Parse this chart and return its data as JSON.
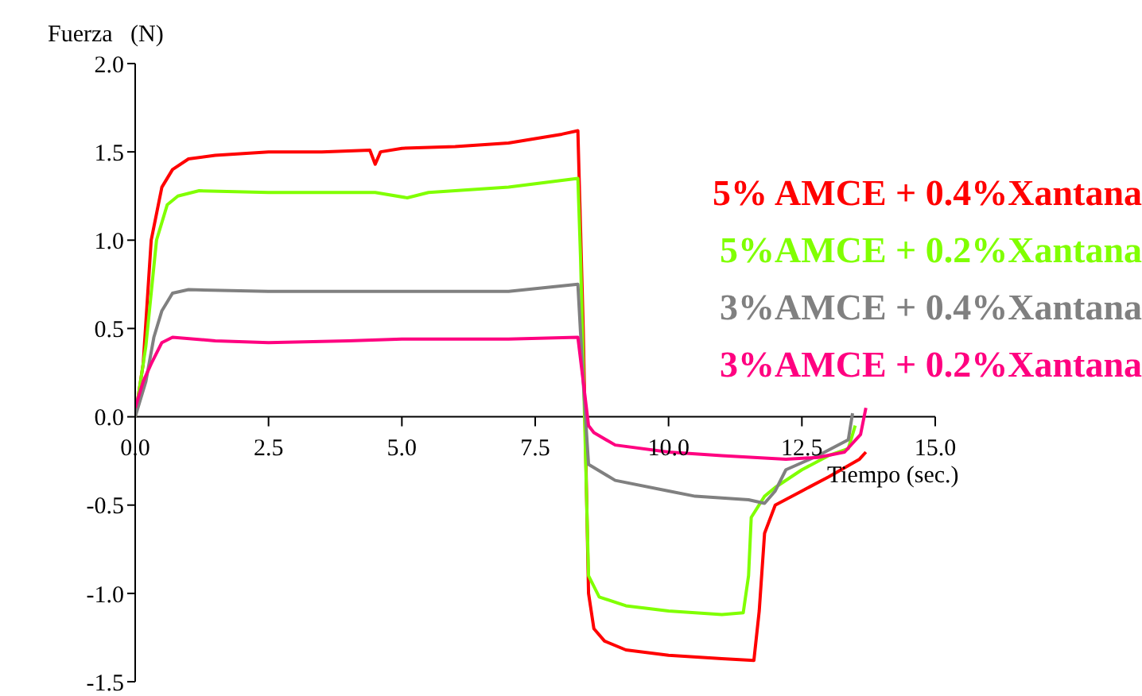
{
  "chart_data": {
    "type": "line",
    "xlabel": "Tiempo (sec.)",
    "ylabel": "Fuerza   (N)",
    "xlim": [
      0,
      15
    ],
    "xticks": [
      {
        "value": 0,
        "label": "0.0"
      },
      2.5,
      {
        "value": 5,
        "label": "5.0"
      },
      7.5,
      {
        "value": 10,
        "label": "10.0"
      },
      12.5,
      {
        "value": 15,
        "label": "15.0"
      }
    ],
    "ylim": [
      -1.5,
      2
    ],
    "yticks": [
      {
        "value": -1.5,
        "label": "-1.5"
      },
      {
        "value": -1,
        "label": "-1.0"
      },
      {
        "value": -0.5,
        "label": "-0.5"
      },
      {
        "value": 0,
        "label": "0.0"
      },
      0.5,
      {
        "value": 1,
        "label": "1.0"
      },
      1.5,
      {
        "value": 2,
        "label": "2.0"
      }
    ],
    "legend": "right",
    "marker": "none",
    "line_style": "solid",
    "series": [
      {
        "name": "5% AMCE + 0.4%Xantana",
        "color": "#ff0000",
        "x": [
          0,
          0.15,
          0.3,
          0.5,
          0.7,
          1.0,
          1.5,
          2.5,
          3.5,
          4.4,
          4.5,
          4.6,
          5.0,
          6.0,
          7.0,
          8.0,
          8.3,
          8.4,
          8.5,
          8.6,
          8.8,
          9.2,
          10,
          11,
          11.6,
          11.7,
          11.8,
          12.0,
          12.5,
          13.0,
          13.58,
          13.7
        ],
        "values": [
          0,
          0.3,
          1.0,
          1.3,
          1.4,
          1.46,
          1.48,
          1.5,
          1.5,
          1.51,
          1.43,
          1.5,
          1.52,
          1.53,
          1.55,
          1.6,
          1.62,
          0.5,
          -1.0,
          -1.2,
          -1.27,
          -1.32,
          -1.35,
          -1.37,
          -1.38,
          -1.1,
          -0.66,
          -0.5,
          -0.42,
          -0.34,
          -0.24,
          -0.2
        ]
      },
      {
        "name": "5%AMCE + 0.2%Xantana",
        "color": "#80ff00",
        "x": [
          0,
          0.2,
          0.4,
          0.6,
          0.8,
          1.2,
          2.5,
          4.5,
          5.1,
          5.5,
          7.0,
          8.3,
          8.35,
          8.5,
          8.7,
          9.2,
          10,
          11,
          11.4,
          11.5,
          11.55,
          11.8,
          12.0,
          12.5,
          13.0,
          13.37,
          13.5
        ],
        "values": [
          0,
          0.4,
          1.0,
          1.2,
          1.25,
          1.28,
          1.27,
          1.27,
          1.24,
          1.27,
          1.3,
          1.35,
          0.9,
          -0.9,
          -1.02,
          -1.07,
          -1.1,
          -1.12,
          -1.11,
          -0.9,
          -0.57,
          -0.45,
          -0.4,
          -0.3,
          -0.22,
          -0.18,
          -0.05
        ]
      },
      {
        "name": "3%AMCE + 0.4%Xantana",
        "color": "#808080",
        "x": [
          0,
          0.2,
          0.35,
          0.5,
          0.7,
          1.0,
          2.5,
          5.0,
          7.0,
          8.3,
          8.4,
          8.5,
          9.0,
          10.0,
          10.5,
          11.5,
          11.8,
          12.0,
          12.2,
          12.8,
          13.37,
          13.45
        ],
        "values": [
          0,
          0.2,
          0.45,
          0.6,
          0.7,
          0.72,
          0.71,
          0.71,
          0.71,
          0.75,
          0.2,
          -0.27,
          -0.36,
          -0.42,
          -0.45,
          -0.47,
          -0.49,
          -0.42,
          -0.3,
          -0.22,
          -0.13,
          0.02
        ]
      },
      {
        "name": "3%AMCE + 0.2%Xantana",
        "color": "#ff0080",
        "x": [
          0,
          0.15,
          0.3,
          0.5,
          0.7,
          1.5,
          2.5,
          4.0,
          5.0,
          7.0,
          8.3,
          8.4,
          8.5,
          8.6,
          9.0,
          10.0,
          11.0,
          12.2,
          12.8,
          13.3,
          13.6,
          13.7
        ],
        "values": [
          0.05,
          0.2,
          0.3,
          0.42,
          0.45,
          0.43,
          0.42,
          0.43,
          0.44,
          0.44,
          0.45,
          0.2,
          -0.05,
          -0.09,
          -0.16,
          -0.2,
          -0.22,
          -0.24,
          -0.23,
          -0.2,
          -0.1,
          0.05
        ]
      }
    ]
  }
}
